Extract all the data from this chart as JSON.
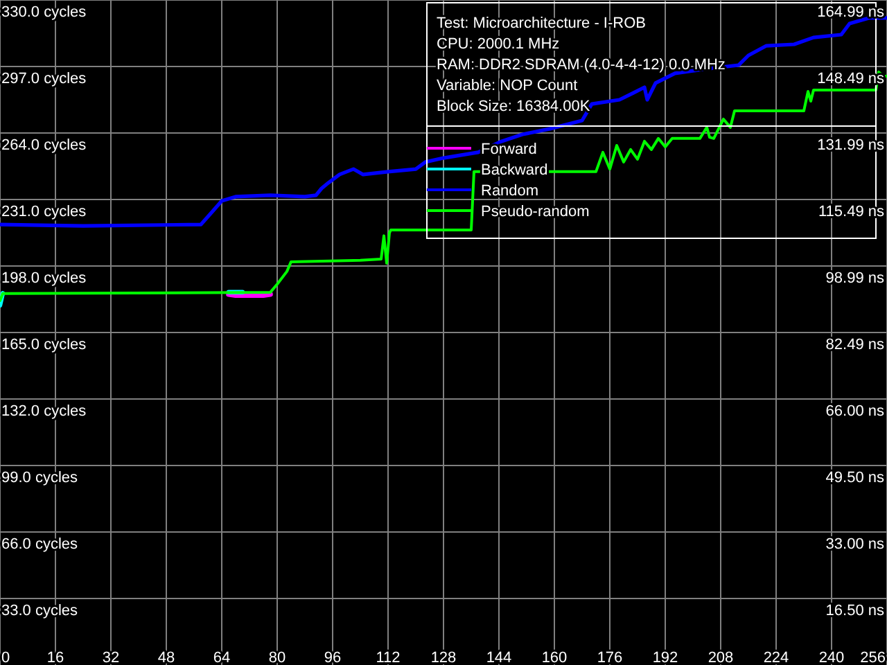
{
  "chart_data": {
    "type": "line",
    "xlim": [
      0,
      256
    ],
    "ylim": [
      0,
      330
    ],
    "y2lim": [
      0,
      164.99
    ],
    "xticks": [
      0,
      16,
      32,
      48,
      64,
      80,
      96,
      112,
      128,
      144,
      160,
      176,
      192,
      208,
      224,
      240,
      256
    ],
    "yticks": [
      {
        "value": 33,
        "label": "33.0 cycles"
      },
      {
        "value": 66,
        "label": "66.0 cycles"
      },
      {
        "value": 99,
        "label": "99.0 cycles"
      },
      {
        "value": 132,
        "label": "132.0 cycles"
      },
      {
        "value": 165,
        "label": "165.0 cycles"
      },
      {
        "value": 198,
        "label": "198.0 cycles"
      },
      {
        "value": 231,
        "label": "231.0 cycles"
      },
      {
        "value": 264,
        "label": "264.0 cycles"
      },
      {
        "value": 297,
        "label": "297.0 cycles"
      },
      {
        "value": 330,
        "label": "330.0 cycles"
      }
    ],
    "y2ticks": [
      {
        "value": 16.5,
        "label": "16.50 ns"
      },
      {
        "value": 33,
        "label": "33.00 ns"
      },
      {
        "value": 49.5,
        "label": "49.50 ns"
      },
      {
        "value": 66,
        "label": "66.00 ns"
      },
      {
        "value": 82.49,
        "label": "82.49 ns"
      },
      {
        "value": 98.99,
        "label": "98.99 ns"
      },
      {
        "value": 115.49,
        "label": "115.49 ns"
      },
      {
        "value": 131.99,
        "label": "131.99 ns"
      },
      {
        "value": 148.49,
        "label": "148.49 ns"
      },
      {
        "value": 164.99,
        "label": "164.99 ns"
      }
    ],
    "grid": true,
    "legend": "top right",
    "annotations": [
      "Test: Microarchitecture - I-ROB",
      "CPU: 2000.1 MHz",
      "RAM: DDR2 SDRAM (4.0-4-4-12) 0.0 MHz",
      "Variable: NOP Count",
      "Block Size: 16384.00K"
    ],
    "series": [
      {
        "name": "Forward",
        "color": "#ff00ff",
        "x": [
          66,
          68,
          72,
          76,
          78
        ],
        "values": [
          184,
          183.5,
          183.5,
          183.5,
          184
        ]
      },
      {
        "name": "Backward",
        "color": "#00ffff",
        "x": [
          0,
          0.8,
          30,
          66,
          70
        ],
        "values": [
          178.5,
          184.5,
          null,
          185,
          185
        ]
      },
      {
        "name": "Random",
        "color": "#0000ff",
        "x": [
          0,
          24,
          58,
          61.2,
          64,
          68,
          78,
          88,
          91.2,
          92.8,
          94.8,
          98,
          102,
          104.8,
          112,
          120,
          122.8,
          128,
          138,
          144.8,
          150.8,
          158.8,
          168,
          170.8,
          178.8,
          182.8,
          186,
          186.8,
          189.2,
          194.8,
          202.8,
          213.2,
          216,
          221.2,
          229.2,
          234.8,
          242.8,
          245.2,
          250.8,
          256
        ],
        "values": [
          218.6,
          217.9,
          218.6,
          224.8,
          230.3,
          232.4,
          233.1,
          232.4,
          233.1,
          236.5,
          239.3,
          243.4,
          246.1,
          243.4,
          244.8,
          246.1,
          249.6,
          251.6,
          254.4,
          259.9,
          263.3,
          266.1,
          270.2,
          278.4,
          280.5,
          283.9,
          286.7,
          280.5,
          288.8,
          293.6,
          295.6,
          297.7,
          302.5,
          307.3,
          308,
          311.4,
          312.8,
          318.3,
          321.1,
          321.1
        ]
      },
      {
        "name": "Pseudo-random",
        "color": "#00ff00",
        "x": [
          0,
          0.8,
          78,
          80,
          82.8,
          84,
          104,
          110,
          110.8,
          111.6,
          112.4,
          112.8,
          136,
          136.8,
          172,
          174,
          176,
          178,
          180,
          182,
          184,
          186,
          188,
          190,
          192,
          194,
          202,
          204,
          204.8,
          206,
          208.8,
          210.8,
          212,
          232,
          233.2,
          234,
          234.8,
          252.8,
          253.6,
          254.8,
          256
        ],
        "values": [
          180.8,
          184.3,
          184.9,
          189,
          195.3,
          200.1,
          200.8,
          201.4,
          213,
          199.4,
          214.5,
          215.9,
          215.9,
          244.8,
          244.8,
          254.4,
          246.1,
          257.8,
          249.6,
          255.8,
          251,
          259.9,
          255.8,
          261.3,
          257.1,
          261.3,
          261.3,
          266.8,
          261.9,
          261.3,
          270.9,
          266.8,
          275,
          275,
          284.6,
          279.8,
          285.3,
          285.3,
          294.3,
          292.2,
          292.2
        ]
      }
    ]
  }
}
